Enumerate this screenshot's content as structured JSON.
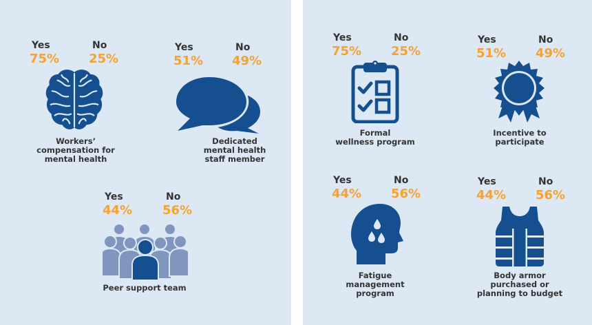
{
  "colors": {
    "background": "#dde8f5",
    "icon_dark": "#154f8f",
    "icon_light": "#8196bf",
    "percent": "#f4a233",
    "text": "#333333"
  },
  "items": [
    {
      "id": "workers-comp",
      "icon": "brain-icon",
      "yes_label": "Yes",
      "no_label": "No",
      "yes_pct": "75%",
      "no_pct": "25%",
      "yes_value": 75,
      "no_value": 25,
      "caption": [
        "Workers’",
        "compensation for",
        "mental health"
      ]
    },
    {
      "id": "mental-health-staff",
      "icon": "speech-bubbles-icon",
      "yes_label": "Yes",
      "no_label": "No",
      "yes_pct": "51%",
      "no_pct": "49%",
      "yes_value": 51,
      "no_value": 49,
      "caption": [
        "Dedicated",
        "mental health",
        "staff member"
      ]
    },
    {
      "id": "peer-support",
      "icon": "people-group-icon",
      "yes_label": "Yes",
      "no_label": "No",
      "yes_pct": "44%",
      "no_pct": "56%",
      "yes_value": 44,
      "no_value": 56,
      "caption": [
        "Peer support team"
      ]
    },
    {
      "id": "wellness-program",
      "icon": "clipboard-checklist-icon",
      "yes_label": "Yes",
      "no_label": "No",
      "yes_pct": "75%",
      "no_pct": "25%",
      "yes_value": 75,
      "no_value": 25,
      "caption": [
        "Formal",
        "wellness program"
      ]
    },
    {
      "id": "incentive",
      "icon": "award-ribbon-icon",
      "yes_label": "Yes",
      "no_label": "No",
      "yes_pct": "51%",
      "no_pct": "49%",
      "yes_value": 51,
      "no_value": 49,
      "caption": [
        "Incentive to",
        "participate"
      ]
    },
    {
      "id": "fatigue-program",
      "icon": "sweating-head-icon",
      "yes_label": "Yes",
      "no_label": "No",
      "yes_pct": "44%",
      "no_pct": "56%",
      "yes_value": 44,
      "no_value": 56,
      "caption": [
        "Fatigue",
        "management",
        "program"
      ]
    },
    {
      "id": "body-armor",
      "icon": "body-armor-icon",
      "yes_label": "Yes",
      "no_label": "No",
      "yes_pct": "44%",
      "no_pct": "56%",
      "yes_value": 44,
      "no_value": 56,
      "caption": [
        "Body armor",
        "purchased or",
        "planning to budget"
      ]
    }
  ]
}
